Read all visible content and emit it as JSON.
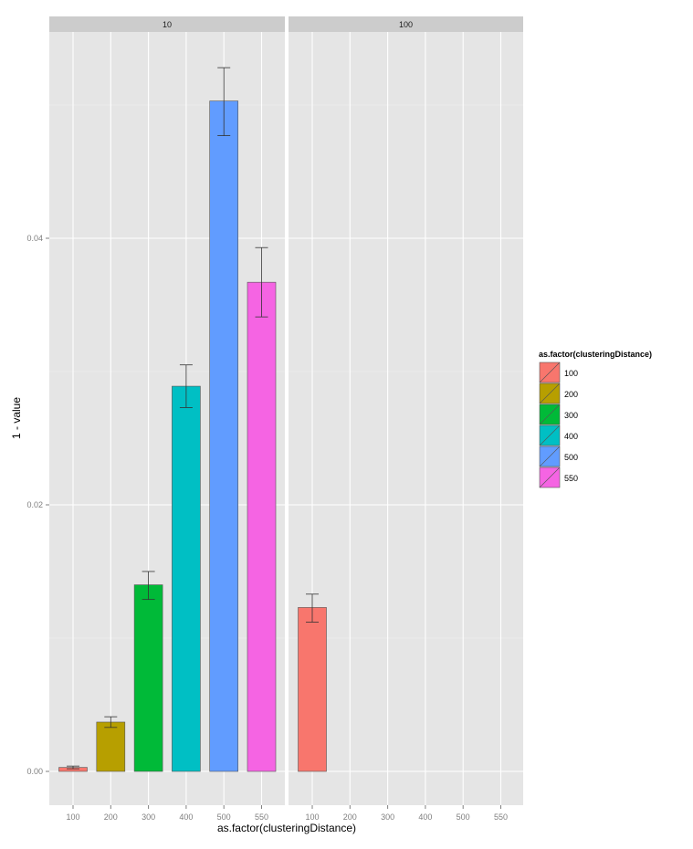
{
  "chart_data": {
    "type": "bar",
    "title": "",
    "xlabel": "as.factor(clusteringDistance)",
    "ylabel": "1 - value",
    "ylim": [
      -0.0025,
      0.0555
    ],
    "yticks": [
      0.0,
      0.02,
      0.04
    ],
    "ytick_labels": [
      "0.00",
      "0.02",
      "0.04"
    ],
    "categories": [
      "100",
      "200",
      "300",
      "400",
      "500",
      "550"
    ],
    "grid": true,
    "legend": {
      "title": "as.factor(clusteringDistance)",
      "placement": "right",
      "entries": [
        "100",
        "200",
        "300",
        "400",
        "500",
        "550"
      ],
      "colors": [
        "#F8766D",
        "#B79F00",
        "#00BA38",
        "#00BFC4",
        "#619CFF",
        "#F564E3"
      ]
    },
    "facets": [
      {
        "label": "10",
        "values": [
          0.0003,
          0.0037,
          0.014,
          0.0289,
          0.0503,
          0.0367
        ],
        "err_low": [
          0.0002,
          0.0033,
          0.0129,
          0.0273,
          0.0477,
          0.0341
        ],
        "err_high": [
          0.0004,
          0.0041,
          0.015,
          0.0305,
          0.0528,
          0.0393
        ]
      },
      {
        "label": "100",
        "values": [
          0.0123,
          null,
          null,
          null,
          null,
          null
        ],
        "err_low": [
          0.0112,
          null,
          null,
          null,
          null,
          null
        ],
        "err_high": [
          0.0133,
          null,
          null,
          null,
          null,
          null
        ]
      }
    ]
  }
}
